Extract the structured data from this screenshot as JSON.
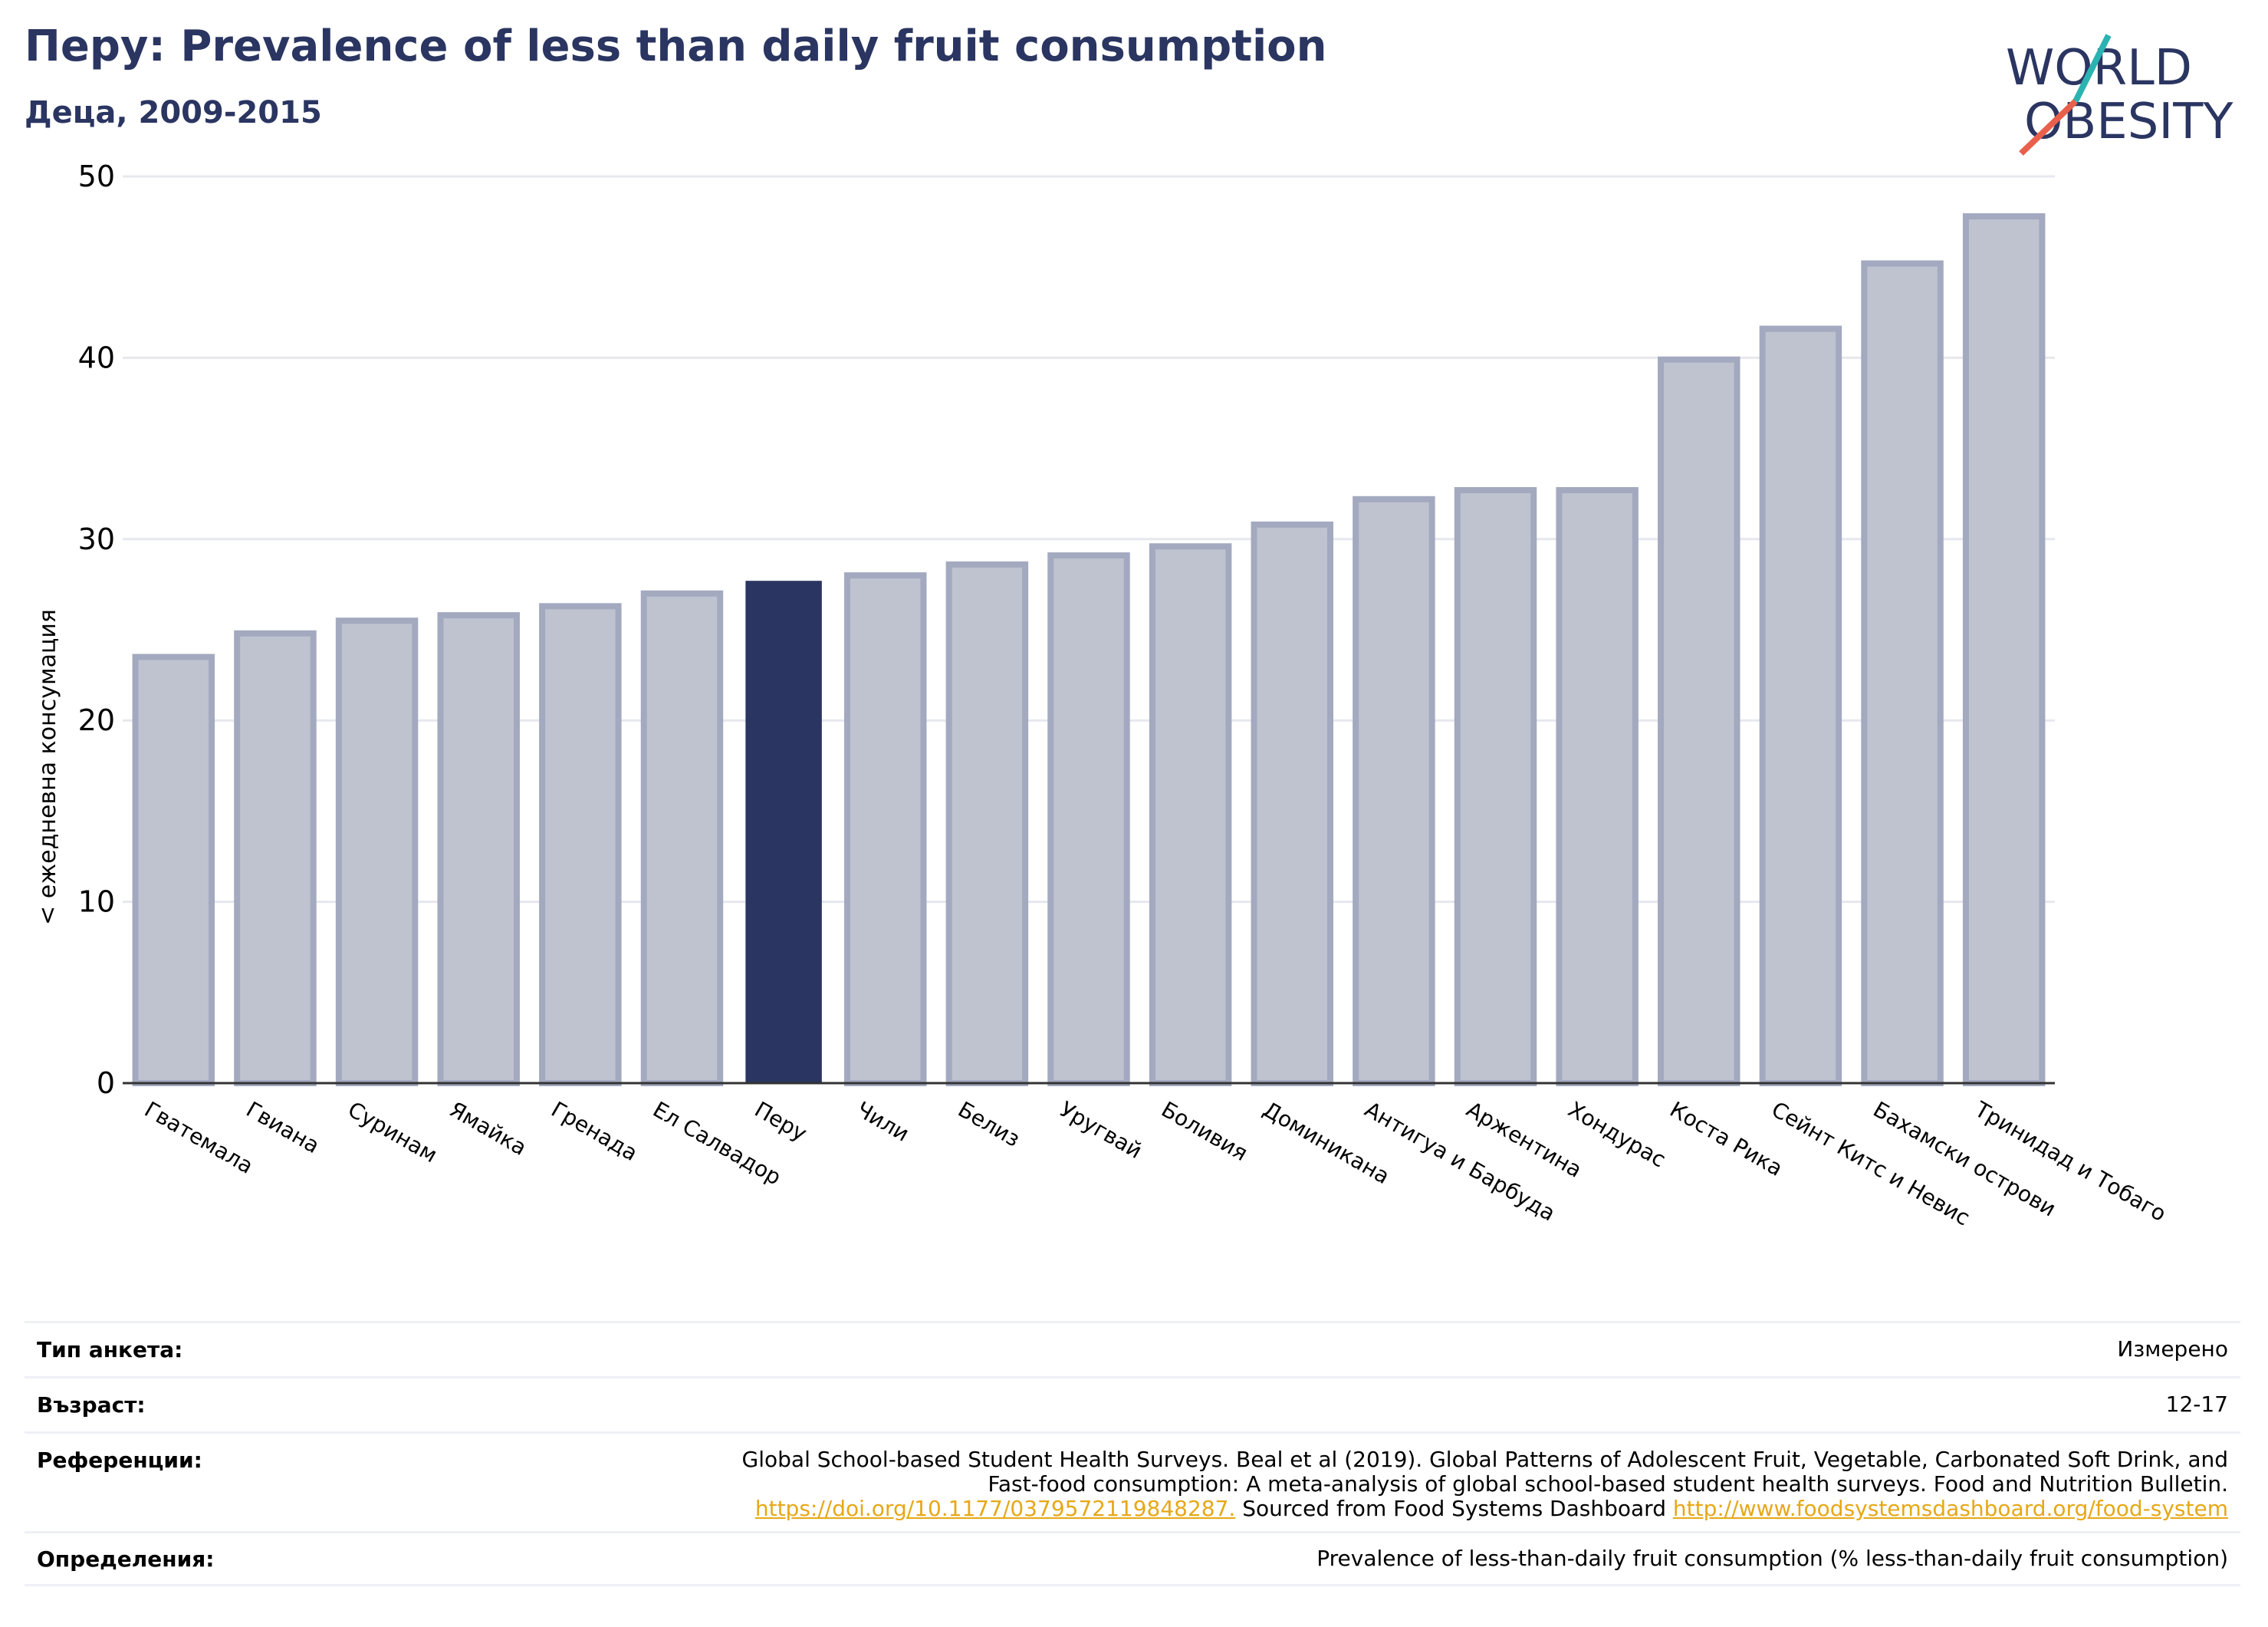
{
  "title": "Перу: Prevalence of less than daily fruit consumption",
  "subtitle": "Деца, 2009-2015",
  "logo": {
    "line1": "WORLD",
    "line2": "OBESITY"
  },
  "colors": {
    "highlight": "#2a3561",
    "bar": "#bfc3d0",
    "bar_edge": "#a3a9bf",
    "title": "#2a3561",
    "link": "#e6a817",
    "logo_teal": "#2bb3b1",
    "logo_red": "#e8604c"
  },
  "chart_data": {
    "type": "bar",
    "title": "Перу: Prevalence of less than daily fruit consumption",
    "subtitle": "Деца, 2009-2015",
    "xlabel": "",
    "ylabel": "< ежедневна консумация",
    "ylim": [
      0,
      50
    ],
    "yticks": [
      0,
      10,
      20,
      30,
      40,
      50
    ],
    "grid": true,
    "highlight": "Перу",
    "categories": [
      "Гватемала",
      "Гвиана",
      "Суринам",
      "Ямайка",
      "Гренада",
      "Ел Салвадор",
      "Перу",
      "Чили",
      "Белиз",
      "Уругвай",
      "Боливия",
      "Доминикана",
      "Антигуа и Барбуда",
      "Аржентина",
      "Хондурас",
      "Коста Рика",
      "Сейнт Китс и Невис",
      "Бахамски острови",
      "Тринидад и Тобаго"
    ],
    "values": [
      23.5,
      24.8,
      25.5,
      25.8,
      26.3,
      27.0,
      27.7,
      28.0,
      28.6,
      29.1,
      29.6,
      30.8,
      32.2,
      32.7,
      32.7,
      39.9,
      41.6,
      45.2,
      47.8
    ]
  },
  "meta": {
    "survey_label": "Тип анкета:",
    "survey_value": "Измерено",
    "age_label": "Възраст:",
    "age_value": "12-17",
    "refs_label": "Референции:",
    "refs_text1": "Global School-based Student Health Surveys. Beal et al (2019). Global Patterns of Adolescent Fruit, Vegetable, Carbonated Soft Drink, and",
    "refs_text2": "Fast-food consumption: A meta-analysis of global school-based student health surveys. Food and Nutrition Bulletin.",
    "refs_link1": "https://doi.org/10.1177/0379572119848287.",
    "refs_mid": " Sourced from Food Systems Dashboard ",
    "refs_link2": "http://www.foodsystemsdashboard.org/food-system",
    "defs_label": "Определения:",
    "defs_value": "Prevalence of less-than-daily fruit consumption (% less-than-daily fruit consumption)"
  }
}
